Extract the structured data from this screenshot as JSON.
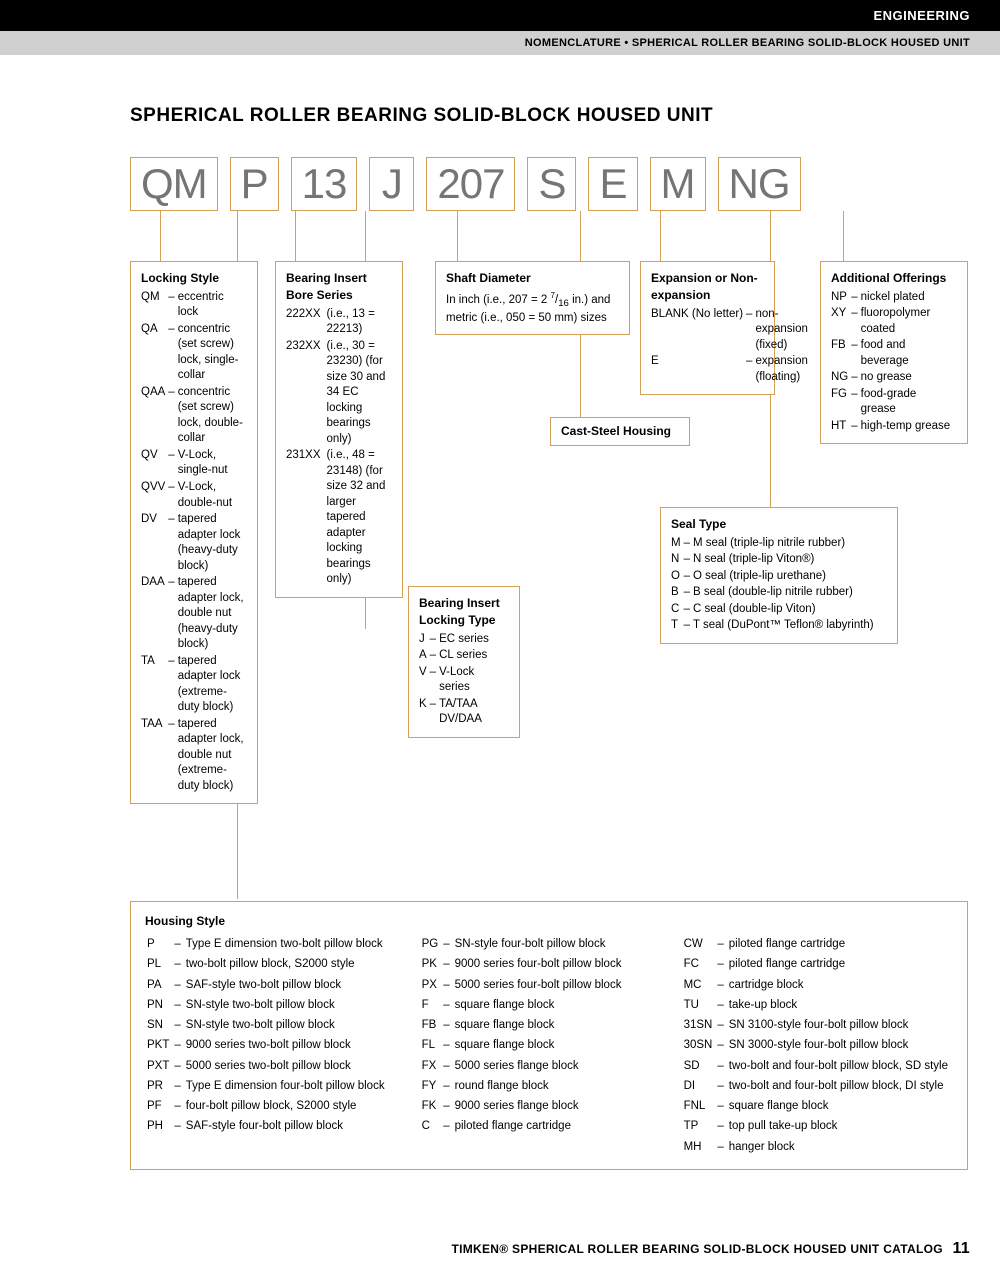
{
  "header": {
    "category": "ENGINEERING",
    "subtitle": "NOMENCLATURE • SPHERICAL ROLLER BEARING SOLID-BLOCK HOUSED UNIT"
  },
  "title": "SPHERICAL ROLLER BEARING SOLID-BLOCK HOUSED UNIT",
  "codes": [
    "QM",
    "P",
    "13",
    "J",
    "207",
    "S",
    "E",
    "M",
    "NG"
  ],
  "boxes": {
    "locking_style": {
      "title": "Locking Style",
      "rows": [
        [
          "QM",
          "eccentric lock"
        ],
        [
          "QA",
          "concentric (set screw) lock, single-collar"
        ],
        [
          "QAA",
          "concentric (set screw) lock, double-collar"
        ],
        [
          "QV",
          "V-Lock, single-nut"
        ],
        [
          "QVV",
          "V-Lock, double-nut"
        ],
        [
          "DV",
          "tapered adapter lock (heavy-duty block)"
        ],
        [
          "DAA",
          "tapered adapter lock, double nut (heavy-duty block)"
        ],
        [
          "TA",
          "tapered adapter lock (extreme-duty block)"
        ],
        [
          "TAA",
          "tapered adapter lock, double nut (extreme-duty block)"
        ]
      ]
    },
    "bore_series": {
      "title": "Bearing Insert Bore Series",
      "rows": [
        [
          "222XX",
          "(i.e., 13 = 22213)"
        ],
        [
          "232XX",
          "(i.e., 30 = 23230) (for size 30 and 34 EC locking bearings only)"
        ],
        [
          "231XX",
          "(i.e., 48 = 23148) (for size 32 and larger tapered adapter locking bearings only)"
        ]
      ]
    },
    "locking_type": {
      "title": "Bearing Insert Locking Type",
      "rows": [
        [
          "J",
          "EC series"
        ],
        [
          "A",
          "CL series"
        ],
        [
          "V",
          "V-Lock series"
        ],
        [
          "K",
          "TA/TAA DV/DAA"
        ]
      ]
    },
    "shaft_diameter": {
      "title": "Shaft Diameter",
      "text_html": "In inch (i.e., 207 = 2 <sup>7</sup>/<sub>16</sub> in.) and metric (i.e., 050 = 50 mm) sizes"
    },
    "cast_steel": "Cast-Steel Housing",
    "expansion": {
      "title": "Expansion or Non-expansion",
      "rows": [
        [
          "BLANK (No letter)",
          "non-expansion (fixed)"
        ],
        [
          "E",
          "expansion (floating)"
        ]
      ]
    },
    "seal_type": {
      "title": "Seal Type",
      "rows": [
        [
          "M",
          "M seal (triple-lip nitrile rubber)"
        ],
        [
          "N",
          "N seal (triple-lip Viton®)"
        ],
        [
          "O",
          "O seal (triple-lip urethane)"
        ],
        [
          "B",
          "B seal (double-lip nitrile rubber)"
        ],
        [
          "C",
          "C seal (double-lip Viton)"
        ],
        [
          "T",
          "T seal (DuPont™ Teflon® labyrinth)"
        ]
      ]
    },
    "additional": {
      "title": "Additional Offerings",
      "rows": [
        [
          "NP",
          "nickel plated"
        ],
        [
          "XY",
          "fluoropolymer coated"
        ],
        [
          "FB",
          "food and beverage"
        ],
        [
          "NG",
          "no grease"
        ],
        [
          "FG",
          "food-grade grease"
        ],
        [
          "HT",
          "high-temp grease"
        ]
      ]
    },
    "housing": {
      "title": "Housing Style",
      "col1": [
        [
          "P",
          "Type E dimension two-bolt pillow block"
        ],
        [
          "PL",
          "two-bolt pillow block, S2000 style"
        ],
        [
          "PA",
          "SAF-style two-bolt pillow block"
        ],
        [
          "PN",
          "SN-style two-bolt pillow block"
        ],
        [
          "SN",
          "SN-style two-bolt pillow block"
        ],
        [
          "PKT",
          "9000 series two-bolt pillow block"
        ],
        [
          "PXT",
          "5000 series two-bolt pillow block"
        ],
        [
          "PR",
          "Type E dimension four-bolt pillow block"
        ],
        [
          "PF",
          "four-bolt pillow block, S2000 style"
        ],
        [
          "PH",
          "SAF-style four-bolt pillow block"
        ]
      ],
      "col2": [
        [
          "PG",
          "SN-style four-bolt pillow block"
        ],
        [
          "PK",
          "9000 series four-bolt pillow block"
        ],
        [
          "PX",
          "5000 series four-bolt pillow block"
        ],
        [
          "F",
          "square flange block"
        ],
        [
          "FB",
          "square flange block"
        ],
        [
          "FL",
          "square flange block"
        ],
        [
          "FX",
          "5000 series flange block"
        ],
        [
          "FY",
          "round flange block"
        ],
        [
          "FK",
          "9000 series flange block"
        ],
        [
          "C",
          "piloted flange cartridge"
        ]
      ],
      "col3": [
        [
          "CW",
          "piloted flange cartridge"
        ],
        [
          "FC",
          "piloted flange cartridge"
        ],
        [
          "MC",
          "cartridge block"
        ],
        [
          "TU",
          "take-up block"
        ],
        [
          "31SN",
          "SN 3100-style four-bolt pillow block"
        ],
        [
          "30SN",
          "SN 3000-style four-bolt pillow block"
        ],
        [
          "SD",
          "two-bolt and four-bolt pillow block, SD style"
        ],
        [
          "DI",
          "two-bolt and four-bolt pillow block, DI style"
        ],
        [
          "FNL",
          "square flange block"
        ],
        [
          "TP",
          "top pull take-up block"
        ],
        [
          "MH",
          "hanger block"
        ]
      ]
    }
  },
  "footer": {
    "text": "TIMKEN® SPHERICAL ROLLER BEARING SOLID-BLOCK HOUSED UNIT CATALOG",
    "page": "11"
  },
  "colors": {
    "accent": "#d4a056",
    "code_text": "#757575",
    "black": "#000000",
    "gray_bg": "#d0d0d0"
  }
}
